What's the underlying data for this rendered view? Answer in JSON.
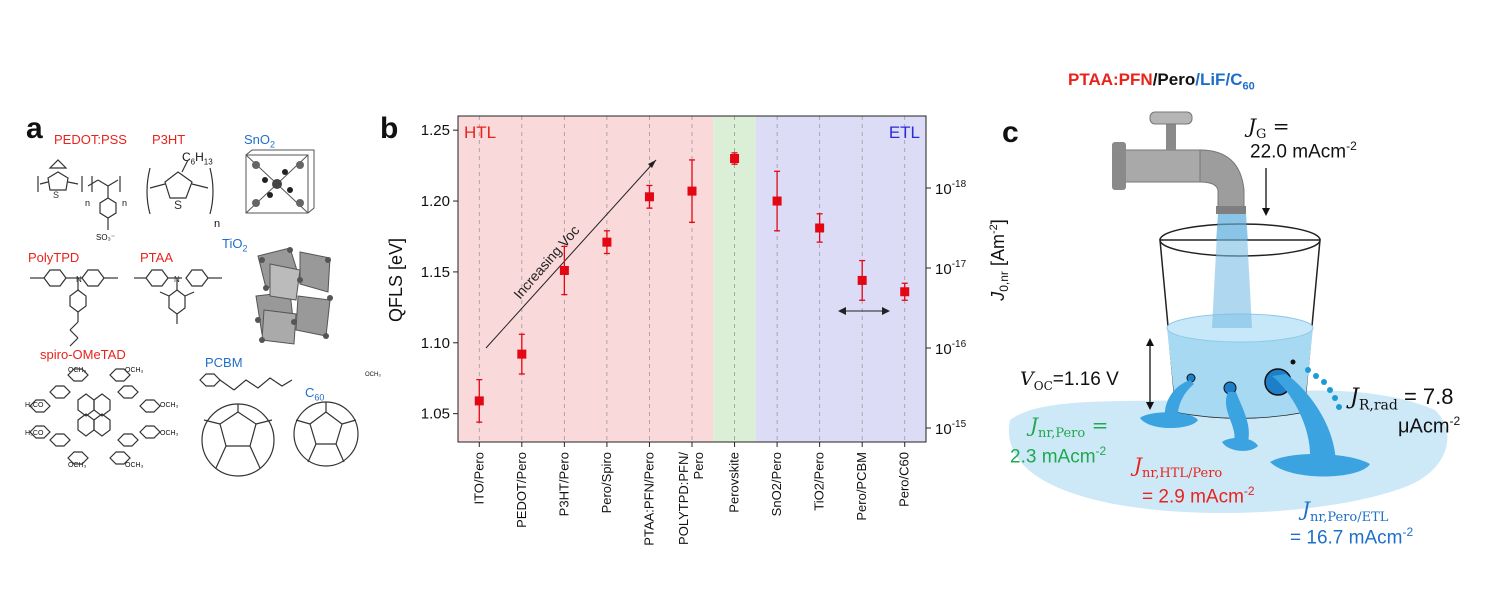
{
  "panel_a": {
    "letter": "a",
    "labels": {
      "pedot": "PEDOT:PSS",
      "p3ht": "P3HT",
      "sno2": "SnO",
      "sno2_sub": "2",
      "polytpd": "PolyTPD",
      "ptaa": "PTAA",
      "tio2": "TiO",
      "tio2_sub": "2",
      "spiro": "spiro-OMeTAD",
      "pcbm": "PCBM",
      "c60": "C",
      "c60_sub": "60",
      "c6h13": "C",
      "c6h13_sub1": "6",
      "c6h13_mid": "H",
      "c6h13_sub2": "13",
      "n1": "n",
      "n2": "n",
      "n3": "n",
      "so3": "SO₃⁻",
      "och3_1": "OCH₃",
      "h3co_1": "H₃CO",
      "och3_2": "OCH₃",
      "h3co_2": "H₃CO",
      "och3_3": "OCH₃",
      "och3_4": "OCH₃",
      "och3_5": "OCH₃",
      "och3_6": "OCH₃",
      "och3_7": "OCH₃"
    },
    "colors": {
      "hole_label": "#e8231c",
      "electron_label": "#1f6fc8"
    }
  },
  "panel_b": {
    "letter": "b"
  },
  "chart_data": {
    "type": "scatter",
    "ylabel": "QFLS [eV]",
    "y2label": "J",
    "y2label_sub": "0,nr",
    "y2label_unit": " [Am",
    "y2label_sup": "-2",
    "y2label_end": "]",
    "ylim": [
      1.03,
      1.26
    ],
    "yticks": [
      "1.05",
      "1.10",
      "1.15",
      "1.20",
      "1.25"
    ],
    "y2ticks": [
      {
        "base": "10",
        "exp": "-18"
      },
      {
        "base": "10",
        "exp": "-17"
      },
      {
        "base": "10",
        "exp": "-16"
      },
      {
        "base": "10",
        "exp": "-15"
      }
    ],
    "categories": [
      "ITO/Pero",
      "PEDOT/Pero",
      "P3HT/Pero",
      "Pero/Spiro",
      "PTAA:PFN/Pero",
      "POLYTPD:PFN/ Pero",
      "Perovskite",
      "SnO2/Pero",
      "TiO2/Pero",
      "Pero/PCBM",
      "Pero/C60"
    ],
    "values": [
      1.059,
      1.092,
      1.151,
      1.171,
      1.203,
      1.207,
      1.23,
      1.2,
      1.181,
      1.144,
      1.136
    ],
    "errors": [
      0.015,
      0.014,
      0.017,
      0.008,
      0.008,
      0.022,
      0.004,
      0.021,
      0.01,
      0.014,
      0.006
    ],
    "regions": [
      {
        "label": "HTL",
        "color": "#f9d9d9",
        "label_color": "#e8231c"
      },
      {
        "label": "",
        "color": "#dbeed6",
        "label_color": "#2a8a2a"
      },
      {
        "label": "ETL",
        "color": "#dcdcf7",
        "label_color": "#2b2bd6"
      }
    ],
    "annotation": "Increasing Voc",
    "marker_color": "#e30613",
    "grid": "vertical dashed"
  },
  "panel_c": {
    "letter": "c",
    "title_parts": [
      {
        "text": "PTAA:PFN",
        "color": "#e8231c"
      },
      {
        "text": "/",
        "color": "#111111"
      },
      {
        "text": "Pero",
        "color": "#111111"
      },
      {
        "text": "/",
        "color": "#1f6fc8"
      },
      {
        "text": "LiF",
        "color": "#1f6fc8"
      },
      {
        "text": "/",
        "color": "#1f6fc8"
      },
      {
        "text": "C",
        "color": "#1f6fc8"
      }
    ],
    "title_sub": "60",
    "jg_label": "J",
    "jg_sub": "G",
    "jg_eq": " =",
    "jg_value": "22.0 mAcm",
    "jg_sup": "-2",
    "voc_label": "V",
    "voc_sub": "OC",
    "voc_value": "=1.16 V",
    "jrad_label": "J",
    "jrad_sub": "R,rad",
    "jrad_eq": " = 7.8",
    "jrad_unit": "μAcm",
    "jrad_sup": "-2",
    "jnr_pero_label": "J",
    "jnr_pero_sub": "nr,Pero",
    "jnr_pero_eq": " =",
    "jnr_pero_value": "2.3 mAcm",
    "jnr_pero_sup": "-2",
    "jnr_htl_label": "J",
    "jnr_htl_sub": "nr,HTL/Pero",
    "jnr_htl_value": "= 2.9 mAcm",
    "jnr_htl_sup": "-2",
    "jnr_etl_label": "J",
    "jnr_etl_sub": "nr,Pero/ETL",
    "jnr_etl_value": "= 16.7 mAcm",
    "jnr_etl_sup": "-2",
    "colors": {
      "water": "#3aa3e0",
      "water_light": "#b9e0f5",
      "green_text": "#1fa84f",
      "red_text": "#e8231c",
      "blue_text": "#1f6fc8"
    }
  }
}
